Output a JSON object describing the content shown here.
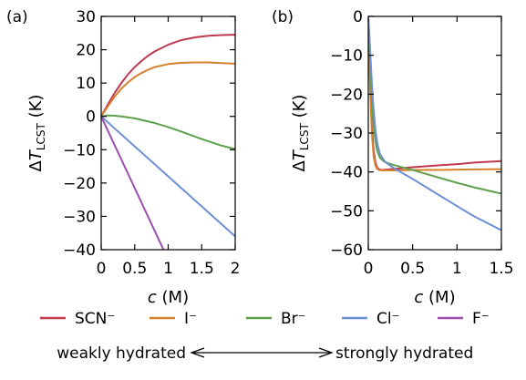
{
  "chart_data": [
    {
      "type": "line",
      "panel_label": "(a)",
      "xlabel": "c (M)",
      "ylabel": "ΔT_LCST (K)",
      "xlim": [
        0,
        2
      ],
      "ylim": [
        -40,
        30
      ],
      "xticks": [
        0,
        0.5,
        1,
        1.5,
        2
      ],
      "xtick_labels": [
        "0",
        "0.5",
        "1",
        "1.5",
        "2"
      ],
      "yticks": [
        -40,
        -30,
        -20,
        -10,
        0,
        10,
        20,
        30
      ],
      "ytick_labels": [
        "−40",
        "−30",
        "−20",
        "−10",
        "0",
        "10",
        "20",
        "30"
      ],
      "grid": false,
      "series": [
        {
          "name": "SCN⁻",
          "color": "#c0394f",
          "x": [
            0,
            0.1,
            0.2,
            0.3,
            0.4,
            0.5,
            0.6,
            0.7,
            0.8,
            1.0,
            1.2,
            1.4,
            1.6,
            1.8,
            2.0
          ],
          "y": [
            0,
            3.6,
            7.0,
            10.0,
            12.6,
            14.8,
            16.6,
            18.2,
            19.5,
            21.5,
            22.9,
            23.7,
            24.2,
            24.4,
            24.5
          ]
        },
        {
          "name": "I⁻",
          "color": "#d4812e",
          "x": [
            0,
            0.1,
            0.2,
            0.3,
            0.4,
            0.5,
            0.6,
            0.7,
            0.8,
            1.0,
            1.2,
            1.4,
            1.6,
            1.8,
            2.0
          ],
          "y": [
            0,
            3.0,
            5.9,
            8.3,
            10.2,
            11.8,
            13.0,
            14.0,
            14.8,
            15.7,
            16.1,
            16.2,
            16.2,
            16.0,
            15.8
          ]
        },
        {
          "name": "Br⁻",
          "color": "#5fa04c",
          "x": [
            0,
            0.1,
            0.2,
            0.3,
            0.5,
            0.8,
            1.0,
            1.2,
            1.5,
            1.8,
            2.0
          ],
          "y": [
            0,
            0.3,
            0.2,
            0.0,
            -0.6,
            -2.0,
            -3.2,
            -4.6,
            -6.8,
            -8.8,
            -9.8
          ]
        },
        {
          "name": "Cl⁻",
          "color": "#6e8fd4",
          "x": [
            0,
            0.5,
            1.0,
            1.5,
            2.0
          ],
          "y": [
            0,
            -9.0,
            -18.0,
            -27.0,
            -36.0
          ]
        },
        {
          "name": "F⁻",
          "color": "#9a4fb0",
          "x": [
            0,
            0.93
          ],
          "y": [
            0,
            -40
          ]
        }
      ]
    },
    {
      "type": "line",
      "panel_label": "(b)",
      "xlabel": "c (M)",
      "ylabel": "ΔT_LCST (K)",
      "xlim": [
        0,
        1.5
      ],
      "ylim": [
        -60,
        0
      ],
      "xticks": [
        0,
        0.5,
        1,
        1.5
      ],
      "xtick_labels": [
        "0",
        "0.5",
        "1",
        "1.5"
      ],
      "yticks": [
        -60,
        -50,
        -40,
        -30,
        -20,
        -10,
        0
      ],
      "ytick_labels": [
        "−60",
        "−50",
        "−40",
        "−30",
        "−20",
        "−10",
        "0"
      ],
      "grid": false,
      "series": [
        {
          "name": "SCN⁻",
          "color": "#c0394f",
          "x": [
            0,
            0.01,
            0.02,
            0.04,
            0.06,
            0.08,
            0.1,
            0.12,
            0.15,
            0.2,
            0.3,
            0.5,
            0.8,
            1.0,
            1.2,
            1.5
          ],
          "y": [
            -0.5,
            -8,
            -16,
            -28,
            -34.5,
            -37.5,
            -38.8,
            -39.3,
            -39.5,
            -39.4,
            -39.2,
            -38.8,
            -38.3,
            -38.0,
            -37.6,
            -37.2
          ]
        },
        {
          "name": "I⁻",
          "color": "#d4812e",
          "x": [
            0,
            0.01,
            0.02,
            0.04,
            0.06,
            0.08,
            0.1,
            0.12,
            0.15,
            0.2,
            0.3,
            0.5,
            0.8,
            1.0,
            1.5
          ],
          "y": [
            -0.5,
            -9,
            -18,
            -30,
            -36,
            -38.3,
            -39.2,
            -39.5,
            -39.6,
            -39.6,
            -39.6,
            -39.5,
            -39.5,
            -39.4,
            -39.3
          ]
        },
        {
          "name": "Br⁻",
          "color": "#5fa04c",
          "x": [
            0,
            0.01,
            0.02,
            0.04,
            0.06,
            0.08,
            0.1,
            0.13,
            0.17,
            0.2,
            0.3,
            0.5,
            0.8,
            1.0,
            1.2,
            1.5
          ],
          "y": [
            -0.5,
            -5,
            -11,
            -21,
            -28,
            -32,
            -34.5,
            -36.3,
            -37.2,
            -37.6,
            -38.3,
            -39.5,
            -41.5,
            -42.8,
            -44.0,
            -45.6
          ]
        },
        {
          "name": "Cl⁻",
          "color": "#6e8fd4",
          "x": [
            0,
            0.01,
            0.02,
            0.04,
            0.06,
            0.08,
            0.1,
            0.13,
            0.17,
            0.2,
            0.3,
            0.5,
            0.8,
            1.0,
            1.2,
            1.5
          ],
          "y": [
            -0.5,
            -4,
            -8.5,
            -17,
            -24,
            -29,
            -32.5,
            -35.3,
            -36.8,
            -37.6,
            -39.2,
            -41.8,
            -46.0,
            -48.8,
            -51.5,
            -55.0
          ]
        }
      ]
    }
  ],
  "legend": {
    "placement": "bottom",
    "items": [
      {
        "label": "SCN⁻",
        "color": "#c0394f"
      },
      {
        "label": "I⁻",
        "color": "#d4812e"
      },
      {
        "label": "Br⁻",
        "color": "#5fa04c"
      },
      {
        "label": "Cl⁻",
        "color": "#6e8fd4"
      },
      {
        "label": "F⁻",
        "color": "#9a4fb0"
      }
    ]
  },
  "hydration": {
    "left": "weakly hydrated",
    "right": "strongly hydrated"
  }
}
